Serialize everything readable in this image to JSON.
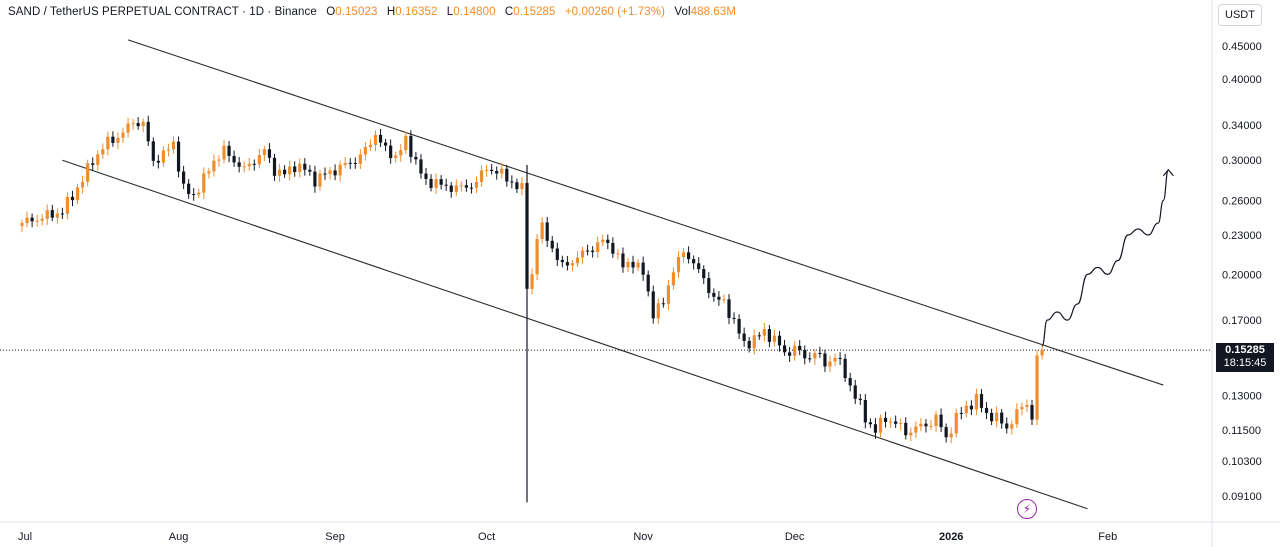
{
  "header": {
    "symbol": "SAND / TetherUS PERPETUAL CONTRACT · 1D · Binance",
    "open_label": "O",
    "open": "0.15023",
    "high_label": "H",
    "high": "0.16352",
    "low_label": "L",
    "low": "0.14800",
    "close_label": "C",
    "close": "0.15285",
    "change": "+0.00260 (+1.73%)",
    "vol_label": "Vol",
    "volume": "488.63M"
  },
  "currency_button": "USDT",
  "price_tag": {
    "price": "0.15285",
    "countdown": "18:15:45"
  },
  "flash_icon": "lightning-icon",
  "colors": {
    "up": "#ef8e2d",
    "down": "#131722",
    "line": "#2a2a2a",
    "grid": "#f0f3fa"
  },
  "chart_data": {
    "type": "candlestick",
    "title": "SAND / TetherUS PERPETUAL CONTRACT · 1D · Binance",
    "scale": "log",
    "ylim": [
      0.083,
      0.53
    ],
    "y_ticks": [
      0.45,
      0.4,
      0.34,
      0.3,
      0.26,
      0.23,
      0.2,
      0.17,
      0.13,
      0.115,
      0.103,
      0.091
    ],
    "y_tick_labels": [
      "0.45000",
      "0.40000",
      "0.34000",
      "0.30000",
      "0.26000",
      "0.23000",
      "0.20000",
      "0.17000",
      "0.13000",
      "0.11500",
      "0.10300",
      "0.09100"
    ],
    "x_labels": [
      {
        "label": "Jul",
        "day": 0
      },
      {
        "label": "Aug",
        "day": 31
      },
      {
        "label": "Sep",
        "day": 62
      },
      {
        "label": "Oct",
        "day": 92
      },
      {
        "label": "Nov",
        "day": 123
      },
      {
        "label": "Dec",
        "day": 153
      },
      {
        "label": "2026",
        "day": 184
      },
      {
        "label": "Feb",
        "day": 215
      }
    ],
    "last_price": 0.15285,
    "close_anchors": [
      [
        0,
        0.24
      ],
      [
        4,
        0.245
      ],
      [
        8,
        0.25
      ],
      [
        12,
        0.28
      ],
      [
        14,
        0.3
      ],
      [
        17,
        0.32
      ],
      [
        20,
        0.33
      ],
      [
        22,
        0.345
      ],
      [
        24,
        0.34
      ],
      [
        26,
        0.3
      ],
      [
        28,
        0.305
      ],
      [
        30,
        0.32
      ],
      [
        32,
        0.27
      ],
      [
        34,
        0.265
      ],
      [
        36,
        0.28
      ],
      [
        38,
        0.3
      ],
      [
        40,
        0.31
      ],
      [
        42,
        0.3
      ],
      [
        44,
        0.29
      ],
      [
        46,
        0.3
      ],
      [
        48,
        0.31
      ],
      [
        50,
        0.29
      ],
      [
        52,
        0.285
      ],
      [
        54,
        0.295
      ],
      [
        56,
        0.29
      ],
      [
        58,
        0.28
      ],
      [
        60,
        0.285
      ],
      [
        62,
        0.29
      ],
      [
        64,
        0.295
      ],
      [
        66,
        0.3
      ],
      [
        68,
        0.31
      ],
      [
        70,
        0.33
      ],
      [
        72,
        0.31
      ],
      [
        74,
        0.305
      ],
      [
        76,
        0.32
      ],
      [
        78,
        0.3
      ],
      [
        80,
        0.275
      ],
      [
        82,
        0.28
      ],
      [
        84,
        0.27
      ],
      [
        86,
        0.275
      ],
      [
        88,
        0.27
      ],
      [
        90,
        0.28
      ],
      [
        92,
        0.29
      ],
      [
        94,
        0.29
      ],
      [
        96,
        0.28
      ],
      [
        98,
        0.275
      ],
      [
        99,
        0.27
      ],
      [
        100,
        0.19
      ],
      [
        101,
        0.2
      ],
      [
        102,
        0.23
      ],
      [
        103,
        0.235
      ],
      [
        105,
        0.22
      ],
      [
        107,
        0.205
      ],
      [
        109,
        0.21
      ],
      [
        111,
        0.215
      ],
      [
        113,
        0.22
      ],
      [
        115,
        0.225
      ],
      [
        117,
        0.22
      ],
      [
        119,
        0.205
      ],
      [
        121,
        0.21
      ],
      [
        123,
        0.2
      ],
      [
        125,
        0.175
      ],
      [
        127,
        0.18
      ],
      [
        129,
        0.205
      ],
      [
        131,
        0.215
      ],
      [
        133,
        0.21
      ],
      [
        135,
        0.195
      ],
      [
        137,
        0.185
      ],
      [
        139,
        0.18
      ],
      [
        141,
        0.17
      ],
      [
        143,
        0.155
      ],
      [
        145,
        0.16
      ],
      [
        147,
        0.162
      ],
      [
        149,
        0.16
      ],
      [
        151,
        0.15
      ],
      [
        153,
        0.155
      ],
      [
        155,
        0.148
      ],
      [
        157,
        0.152
      ],
      [
        159,
        0.145
      ],
      [
        161,
        0.15
      ],
      [
        163,
        0.14
      ],
      [
        165,
        0.13
      ],
      [
        167,
        0.12
      ],
      [
        169,
        0.115
      ],
      [
        171,
        0.12
      ],
      [
        173,
        0.118
      ],
      [
        175,
        0.114
      ],
      [
        177,
        0.116
      ],
      [
        179,
        0.117
      ],
      [
        181,
        0.12
      ],
      [
        183,
        0.112
      ],
      [
        185,
        0.12
      ],
      [
        187,
        0.125
      ],
      [
        189,
        0.128
      ],
      [
        191,
        0.122
      ],
      [
        193,
        0.12
      ],
      [
        195,
        0.116
      ],
      [
        197,
        0.122
      ],
      [
        199,
        0.127
      ],
      [
        200,
        0.12
      ],
      [
        201,
        0.15
      ],
      [
        202,
        0.15285
      ]
    ],
    "upper_channel": {
      "from": {
        "day": 21,
        "price": 0.46
      },
      "to": {
        "day": 226,
        "price": 0.135
      }
    },
    "lower_channel": {
      "from": {
        "day": 8,
        "price": 0.3
      },
      "to": {
        "day": 211,
        "price": 0.087
      }
    },
    "wick_line": {
      "day": 100,
      "top": 0.295,
      "bottom": 0.089
    },
    "projection_path": [
      [
        202,
        0.155
      ],
      [
        203,
        0.17
      ],
      [
        205,
        0.175
      ],
      [
        207,
        0.17
      ],
      [
        209,
        0.18
      ],
      [
        211,
        0.2
      ],
      [
        213,
        0.205
      ],
      [
        215,
        0.2
      ],
      [
        217,
        0.21
      ],
      [
        219,
        0.23
      ],
      [
        221,
        0.235
      ],
      [
        223,
        0.23
      ],
      [
        225,
        0.24
      ],
      [
        226,
        0.26
      ],
      [
        227,
        0.29
      ]
    ]
  }
}
